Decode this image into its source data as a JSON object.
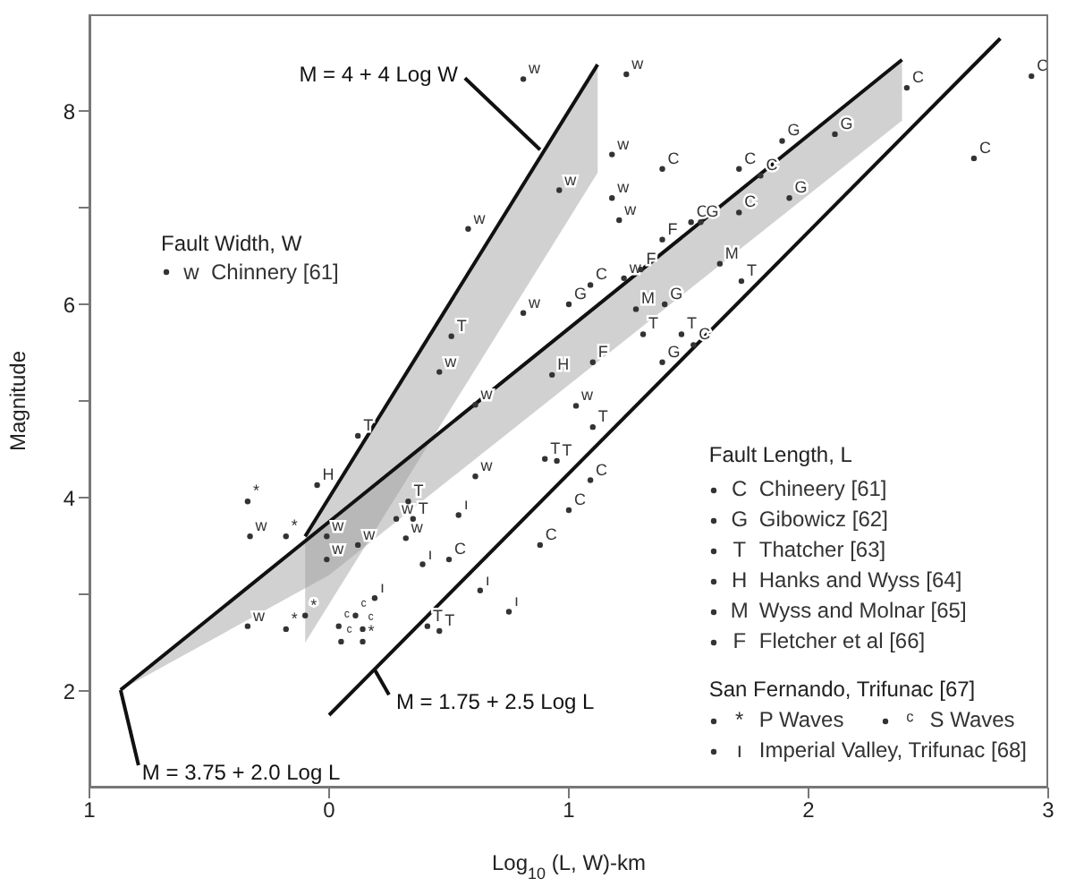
{
  "chart_data": {
    "type": "scatter",
    "xlabel": "Log$_{10}$ (L, W)-km",
    "ylabel": "Magnitude",
    "legend_title": "Fault Length, L",
    "legend": "bottom right",
    "marker": "circle",
    "xlim": [
      -1,
      3
    ],
    "xticks": [
      {
        "value": -1,
        "label": "1"
      },
      0,
      1,
      2,
      3
    ],
    "ylim": [
      1,
      9
    ],
    "yticks": [
      2,
      {
        "value": 3,
        "label": null
      },
      4,
      {
        "value": 5,
        "label": null
      },
      6,
      {
        "value": 7,
        "label": null
      },
      8
    ],
    "annotations": [
      {
        "text": "M = 4 + 4 Log W",
        "x": 0.88,
        "y": 7.6
      },
      {
        "text": "M = 3.75 + 2.0 Log L",
        "x": -0.87,
        "y": 2.01
      },
      {
        "text": "M = 1.75 + 2.5 Log L",
        "x": 0.19,
        "y": 2.22
      },
      "Fault Width, W",
      "San Fernando, Trifunac [67]"
    ],
    "series": [
      {
        "name": "Chinnery [61]",
        "color": "#333333",
        "x": [
          0.81,
          1.24,
          1.18,
          0.96,
          1.18,
          0.58,
          1.21,
          1.23,
          0.81,
          0.46,
          0.61,
          1.03,
          0.61,
          -0.33,
          0.28,
          0.32,
          -0.01,
          -0.01,
          0.12,
          -0.34
        ],
        "values": [
          8.33,
          8.38,
          7.55,
          7.18,
          7.1,
          6.78,
          6.87,
          6.27,
          5.91,
          5.3,
          4.96,
          4.95,
          4.22,
          3.6,
          3.78,
          3.58,
          3.6,
          3.36,
          3.51,
          2.67
        ],
        "value_labels": [
          "w",
          "w",
          "w",
          "w",
          "w",
          "w",
          "w",
          "w",
          "w",
          "w",
          "w",
          "w",
          "w",
          "w",
          "w",
          "w",
          "w",
          "w",
          "w",
          "w"
        ]
      },
      {
        "name": "Chineery [61]",
        "color": "#333333",
        "x": [
          1.39,
          1.71,
          1.8,
          2.41,
          2.69,
          2.93,
          1.51,
          1.71,
          1.09,
          1.52,
          1.09,
          1.0,
          0.88,
          0.5
        ],
        "values": [
          7.4,
          7.4,
          7.33,
          8.24,
          7.51,
          8.36,
          6.85,
          6.95,
          6.2,
          5.58,
          4.18,
          3.87,
          3.51,
          3.36
        ],
        "value_labels": [
          "C",
          "C",
          "C",
          "C",
          "C",
          "C",
          "C",
          "C",
          "C",
          "C",
          "C",
          "C",
          "C",
          "C"
        ]
      },
      {
        "name": "Gibowicz [62]",
        "color": "#333333",
        "x": [
          1.89,
          2.11,
          1.55,
          1.0,
          1.4,
          1.39,
          1.92
        ],
        "values": [
          7.69,
          7.76,
          6.85,
          6.0,
          6.0,
          5.4,
          7.1
        ],
        "value_labels": [
          "G",
          "G",
          "G",
          "G",
          "G",
          "G",
          "G"
        ]
      },
      {
        "name": "Thatcher [63]",
        "color": "#333333",
        "x": [
          0.51,
          0.12,
          1.72,
          1.31,
          1.47,
          1.1,
          0.9,
          0.95,
          0.33,
          0.35,
          0.41,
          0.46
        ],
        "values": [
          5.67,
          4.64,
          6.24,
          5.69,
          5.69,
          4.73,
          4.4,
          4.38,
          3.96,
          3.78,
          2.67,
          2.62
        ],
        "value_labels": [
          "T",
          "T",
          "T",
          "T",
          "T",
          "T",
          "T",
          "T",
          "T",
          "T",
          "T",
          "T"
        ]
      },
      {
        "name": "Hanks and Wyss [64]",
        "color": "#333333",
        "x": [
          0.93,
          -0.05
        ],
        "values": [
          5.27,
          4.13
        ],
        "value_labels": [
          "H",
          "H"
        ]
      },
      {
        "name": "Wyss and Molnar [65]",
        "color": "#333333",
        "x": [
          1.63,
          1.28
        ],
        "values": [
          6.42,
          5.95
        ],
        "value_labels": [
          "M",
          "M"
        ]
      },
      {
        "name": "Fletcher et al [66]",
        "color": "#333333",
        "x": [
          1.39,
          1.3,
          1.1
        ],
        "values": [
          6.67,
          6.36,
          5.4
        ],
        "value_labels": [
          "F",
          "F",
          "F"
        ]
      },
      {
        "name": "P Waves",
        "color": "#333333",
        "x": [
          -0.34,
          -0.18,
          -0.18,
          -0.1,
          0.14
        ],
        "values": [
          3.96,
          3.6,
          2.64,
          2.78,
          2.51
        ],
        "value_labels": [
          "*",
          "*",
          "*",
          "*",
          "*"
        ]
      },
      {
        "name": "S Waves",
        "color": "#333333",
        "x": [
          0.04,
          0.11,
          0.14,
          0.05
        ],
        "values": [
          2.67,
          2.78,
          2.64,
          2.51
        ],
        "value_labels": [
          "ᶜ",
          "ᶜ",
          "ᶜ",
          "ᶜ"
        ]
      },
      {
        "name": "Imperial Valley, Trifunac [68]",
        "color": "#333333",
        "x": [
          0.54,
          0.39,
          0.63,
          0.75,
          0.19
        ],
        "values": [
          3.82,
          3.31,
          3.04,
          2.82,
          2.96
        ],
        "value_labels": [
          "ı",
          "ı",
          "ı",
          "ı",
          "ı"
        ]
      },
      {
        "type": "line",
        "marker": "none",
        "color": "#111111",
        "x": [
          -0.1,
          1.12
        ],
        "values": [
          3.6,
          8.48
        ],
        "lower": [
          2.5,
          7.36
        ],
        "upper": [
          3.6,
          8.48
        ]
      },
      {
        "type": "line",
        "marker": "none",
        "color": "#111111",
        "x": [
          -0.87,
          0,
          2.39
        ],
        "values": [
          2.01,
          3.75,
          8.53
        ],
        "lower": [
          2.01,
          3.2,
          7.9
        ],
        "upper": [
          2.01,
          3.75,
          8.53
        ]
      },
      {
        "type": "line",
        "marker": "none",
        "color": "#111111",
        "x": [
          0,
          2.8
        ],
        "values": [
          1.75,
          8.75
        ]
      }
    ]
  }
}
